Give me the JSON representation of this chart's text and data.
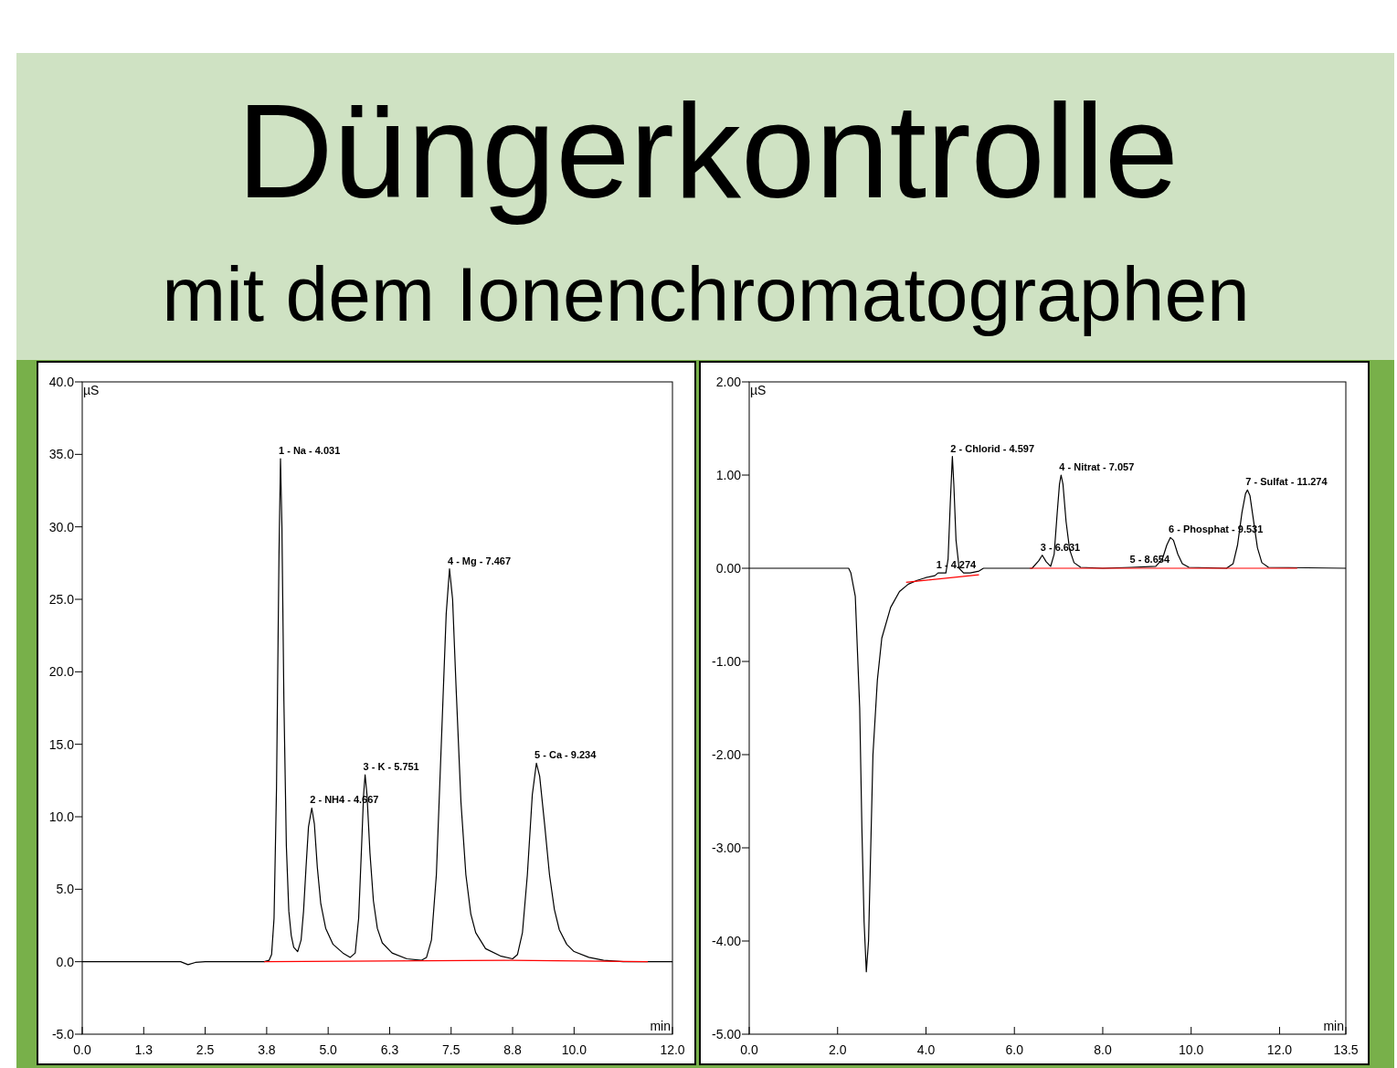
{
  "chart_data": [
    {
      "type": "line",
      "title": "Düngerkontrolle",
      "subtitle": "mit dem Ionenchromatographen",
      "xlabel": "min",
      "ylabel": "µS",
      "xlim": [
        0,
        12
      ],
      "xticks": [
        {
          "value": 0,
          "label": "0.0"
        },
        {
          "value": 1.25,
          "label": "1.3"
        },
        {
          "value": 2.5,
          "label": "2.5"
        },
        {
          "value": 3.75,
          "label": "3.8"
        },
        {
          "value": 5,
          "label": "5.0"
        },
        {
          "value": 6.25,
          "label": "6.3"
        },
        {
          "value": 7.5,
          "label": "7.5"
        },
        {
          "value": 8.75,
          "label": "8.8"
        },
        {
          "value": 10,
          "label": "10.0"
        },
        {
          "value": 12,
          "label": "12.0"
        }
      ],
      "ylim": [
        -5,
        40
      ],
      "yticks": [
        {
          "value": -5,
          "label": "-5.0"
        },
        {
          "value": 0,
          "label": "0.0"
        },
        {
          "value": 5,
          "label": "5.0"
        },
        {
          "value": 10,
          "label": "10.0"
        },
        {
          "value": 15,
          "label": "15.0"
        },
        {
          "value": 20,
          "label": "20.0"
        },
        {
          "value": 25,
          "label": "25.0"
        },
        {
          "value": 30,
          "label": "30.0"
        },
        {
          "value": 35,
          "label": "35.0"
        },
        {
          "value": 40,
          "label": "40.0"
        }
      ],
      "grid": false,
      "series": [
        {
          "color": "#000000",
          "x": [
            0,
            2.0,
            2.15,
            2.3,
            2.5,
            3.7,
            3.8,
            3.85,
            3.9,
            3.95,
            4.0,
            4.031,
            4.06,
            4.1,
            4.15,
            4.2,
            4.25,
            4.3,
            4.38,
            4.45,
            4.5,
            4.55,
            4.6,
            4.667,
            4.72,
            4.78,
            4.85,
            4.95,
            5.1,
            5.3,
            5.45,
            5.55,
            5.62,
            5.68,
            5.72,
            5.751,
            5.79,
            5.85,
            5.92,
            6.0,
            6.1,
            6.3,
            6.6,
            6.9,
            7.0,
            7.1,
            7.2,
            7.3,
            7.4,
            7.467,
            7.53,
            7.6,
            7.7,
            7.8,
            7.9,
            8.0,
            8.2,
            8.5,
            8.75,
            8.85,
            8.95,
            9.05,
            9.15,
            9.234,
            9.3,
            9.4,
            9.5,
            9.6,
            9.7,
            9.85,
            10.0,
            10.3,
            10.6,
            11.0,
            12.0
          ],
          "values": [
            0,
            0,
            -0.2,
            -0.05,
            0,
            0,
            0.1,
            0.5,
            3,
            12,
            28,
            34.7,
            30,
            18,
            8,
            3.5,
            1.8,
            1.0,
            0.7,
            1.5,
            3.5,
            6.5,
            9.3,
            10.6,
            9.5,
            6.5,
            4.0,
            2.3,
            1.2,
            0.6,
            0.3,
            0.6,
            3,
            8,
            11.5,
            12.9,
            11.5,
            7.5,
            4.2,
            2.3,
            1.3,
            0.6,
            0.2,
            0.1,
            0.3,
            1.5,
            6,
            15,
            24,
            27.1,
            25,
            19,
            11,
            6,
            3.3,
            2,
            0.9,
            0.4,
            0.2,
            0.5,
            2,
            6,
            11.5,
            13.7,
            12.8,
            9.5,
            6,
            3.6,
            2.2,
            1.2,
            0.7,
            0.3,
            0.1,
            0,
            0
          ]
        },
        {
          "color": "#ff0000",
          "x": [
            3.7,
            8.7,
            11.5
          ],
          "values": [
            0,
            0.1,
            0
          ]
        }
      ],
      "annotations": [
        {
          "text": "1 - Na - 4.031",
          "x": 4.031,
          "y": 34.7
        },
        {
          "text": "2 - NH4 - 4.667",
          "x": 4.667,
          "y": 10.6
        },
        {
          "text": "3 - K - 5.751",
          "x": 5.751,
          "y": 12.9
        },
        {
          "text": "4 - Mg - 7.467",
          "x": 7.467,
          "y": 27.1
        },
        {
          "text": "5 - Ca - 9.234",
          "x": 9.234,
          "y": 13.7
        }
      ]
    },
    {
      "type": "line",
      "xlabel": "min",
      "ylabel": "µS",
      "xlim": [
        0,
        13.5
      ],
      "xticks": [
        {
          "value": 0,
          "label": "0.0"
        },
        {
          "value": 2,
          "label": "2.0"
        },
        {
          "value": 4,
          "label": "4.0"
        },
        {
          "value": 6,
          "label": "6.0"
        },
        {
          "value": 8,
          "label": "8.0"
        },
        {
          "value": 10,
          "label": "10.0"
        },
        {
          "value": 12,
          "label": "12.0"
        },
        13.5
      ],
      "ylim": [
        -5,
        2
      ],
      "yticks": [
        {
          "value": -5,
          "label": "-5.00"
        },
        {
          "value": -4,
          "label": "-4.00"
        },
        {
          "value": -3,
          "label": "-3.00"
        },
        {
          "value": -2,
          "label": "-2.00"
        },
        {
          "value": -1,
          "label": "-1.00"
        },
        {
          "value": 0,
          "label": "0.00"
        },
        {
          "value": 1,
          "label": "1.00"
        },
        {
          "value": 2,
          "label": "2.00"
        }
      ],
      "grid": false,
      "series": [
        {
          "color": "#000000",
          "x": [
            0,
            2.25,
            2.3,
            2.4,
            2.5,
            2.55,
            2.6,
            2.65,
            2.7,
            2.75,
            2.8,
            2.9,
            3.0,
            3.2,
            3.4,
            3.6,
            3.8,
            4.0,
            4.2,
            4.274,
            4.45,
            4.5,
            4.55,
            4.597,
            4.63,
            4.68,
            4.75,
            4.85,
            5.0,
            5.2,
            5.3,
            6.4,
            6.55,
            6.631,
            6.72,
            6.82,
            6.9,
            6.97,
            7.02,
            7.057,
            7.1,
            7.17,
            7.25,
            7.35,
            7.5,
            8.0,
            8.654,
            9.2,
            9.35,
            9.45,
            9.531,
            9.6,
            9.7,
            9.8,
            9.95,
            10.8,
            10.95,
            11.05,
            11.15,
            11.23,
            11.274,
            11.33,
            11.4,
            11.5,
            11.6,
            11.75,
            13.5
          ],
          "values": [
            0,
            0,
            -0.05,
            -0.3,
            -1.5,
            -2.8,
            -3.8,
            -4.33,
            -4.0,
            -3.0,
            -2.0,
            -1.2,
            -0.75,
            -0.42,
            -0.25,
            -0.17,
            -0.13,
            -0.1,
            -0.08,
            -0.05,
            -0.05,
            0.1,
            0.7,
            1.2,
            0.9,
            0.3,
            0.0,
            -0.05,
            -0.05,
            -0.03,
            0,
            0,
            0.08,
            0.14,
            0.07,
            0.02,
            0.15,
            0.6,
            0.9,
            1.0,
            0.9,
            0.5,
            0.2,
            0.06,
            0.01,
            0,
            0.01,
            0.02,
            0.1,
            0.25,
            0.33,
            0.3,
            0.15,
            0.05,
            0.01,
            0,
            0.05,
            0.25,
            0.6,
            0.8,
            0.84,
            0.78,
            0.55,
            0.22,
            0.06,
            0.01,
            0
          ]
        },
        {
          "color": "#ff0000",
          "x": [
            3.55,
            5.2,
            5.5,
            6.35,
            12.4
          ],
          "values": [
            -0.15,
            -0.07,
            null,
            0,
            0
          ]
        }
      ],
      "annotations": [
        {
          "text": "1 - 4.274",
          "x": 4.274,
          "y": -0.05
        },
        {
          "text": "2 - Chlorid - 4.597",
          "x": 4.597,
          "y": 1.2
        },
        {
          "text": "3 - 6.631",
          "x": 6.631,
          "y": 0.14
        },
        {
          "text": "4 - Nitrat - 7.057",
          "x": 7.057,
          "y": 1.0
        },
        {
          "text": "5 - 8.654",
          "x": 8.654,
          "y": 0.01
        },
        {
          "text": "6 - Phosphat - 9.531",
          "x": 9.531,
          "y": 0.33
        },
        {
          "text": "7 - Sulfat - 11.274",
          "x": 11.274,
          "y": 0.84
        }
      ]
    }
  ]
}
